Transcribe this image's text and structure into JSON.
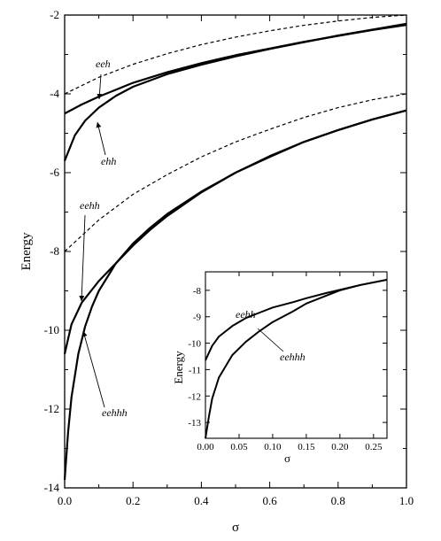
{
  "chart_data": [
    {
      "type": "line",
      "title": "",
      "xlabel": "σ",
      "ylabel": "Energy",
      "xlim": [
        0.0,
        1.0
      ],
      "ylim": [
        -14,
        -2
      ],
      "x_ticks": [
        "0.0",
        "0.2",
        "0.4",
        "0.6",
        "0.8",
        "1.0"
      ],
      "y_ticks": [
        "-14",
        "-12",
        "-10",
        "-8",
        "-6",
        "-4",
        "-2"
      ],
      "grid": false,
      "series": [
        {
          "style": "dashed",
          "x": [
            0.0,
            0.1,
            0.2,
            0.3,
            0.4,
            0.5,
            0.6,
            0.7,
            0.8,
            0.9,
            1.0
          ],
          "y": [
            -4.0,
            -3.58,
            -3.25,
            -2.98,
            -2.75,
            -2.56,
            -2.4,
            -2.26,
            -2.15,
            -2.06,
            -2.0
          ]
        },
        {
          "style": "solid",
          "x": [
            0.0,
            0.05,
            0.1,
            0.2,
            0.3,
            0.4,
            0.5,
            0.6,
            0.7,
            0.8,
            0.9,
            1.0
          ],
          "y": [
            -4.5,
            -4.27,
            -4.07,
            -3.72,
            -3.45,
            -3.22,
            -3.02,
            -2.85,
            -2.68,
            -2.53,
            -2.38,
            -2.25
          ]
        },
        {
          "style": "solid",
          "x": [
            0.0,
            0.03,
            0.06,
            0.1,
            0.15,
            0.2,
            0.3,
            0.4,
            0.5,
            0.6,
            0.7,
            0.8,
            0.9,
            1.0
          ],
          "y": [
            -5.7,
            -5.05,
            -4.68,
            -4.35,
            -4.05,
            -3.82,
            -3.5,
            -3.26,
            -3.05,
            -2.86,
            -2.69,
            -2.52,
            -2.37,
            -2.22
          ]
        },
        {
          "style": "dashed",
          "x": [
            0.0,
            0.1,
            0.2,
            0.3,
            0.4,
            0.5,
            0.6,
            0.7,
            0.8,
            0.9,
            1.0
          ],
          "y": [
            -8.0,
            -7.2,
            -6.55,
            -6.05,
            -5.6,
            -5.22,
            -4.9,
            -4.6,
            -4.35,
            -4.15,
            -4.0
          ]
        },
        {
          "style": "solid",
          "x": [
            0.0,
            0.02,
            0.05,
            0.1,
            0.15,
            0.2,
            0.25,
            0.3,
            0.4,
            0.5,
            0.6,
            0.7,
            0.8,
            0.9,
            1.0
          ],
          "y": [
            -10.6,
            -9.85,
            -9.3,
            -8.75,
            -8.3,
            -7.85,
            -7.45,
            -7.1,
            -6.5,
            -6.0,
            -5.6,
            -5.22,
            -4.92,
            -4.65,
            -4.42
          ]
        },
        {
          "style": "solid",
          "x": [
            0.0,
            0.01,
            0.02,
            0.04,
            0.06,
            0.08,
            0.1,
            0.15,
            0.2,
            0.25,
            0.3,
            0.4,
            0.5,
            0.6,
            0.7,
            0.8,
            0.9,
            1.0
          ],
          "y": [
            -13.8,
            -12.6,
            -11.7,
            -10.6,
            -9.9,
            -9.4,
            -9.0,
            -8.3,
            -7.8,
            -7.4,
            -7.05,
            -6.48,
            -6.0,
            -5.58,
            -5.22,
            -4.92,
            -4.65,
            -4.42
          ]
        }
      ],
      "annotations": [
        {
          "text": "eeh"
        },
        {
          "text": "ehh"
        },
        {
          "text": "eehh"
        },
        {
          "text": "eehhh"
        }
      ]
    },
    {
      "type": "line",
      "title": "",
      "xlabel": "σ",
      "ylabel": "Energy",
      "xlim": [
        0.0,
        0.27
      ],
      "ylim": [
        -13.6,
        -7.3
      ],
      "x_ticks": [
        "0.00",
        "0.05",
        "0.10",
        "0.15",
        "0.20",
        "0.25"
      ],
      "y_ticks": [
        "-8",
        "-9",
        "-10",
        "-11",
        "-12",
        "-13"
      ],
      "grid": false,
      "series": [
        {
          "style": "solid",
          "x": [
            0.0,
            0.01,
            0.02,
            0.04,
            0.06,
            0.08,
            0.1,
            0.13,
            0.15,
            0.18,
            0.2,
            0.23,
            0.27
          ],
          "y": [
            -10.65,
            -10.1,
            -9.75,
            -9.35,
            -9.05,
            -8.85,
            -8.65,
            -8.45,
            -8.3,
            -8.1,
            -7.98,
            -7.8,
            -7.6
          ]
        },
        {
          "style": "solid",
          "x": [
            0.0,
            0.005,
            0.01,
            0.02,
            0.04,
            0.06,
            0.08,
            0.1,
            0.13,
            0.15,
            0.18,
            0.2,
            0.23,
            0.27
          ],
          "y": [
            -13.6,
            -12.8,
            -12.1,
            -11.3,
            -10.45,
            -9.95,
            -9.55,
            -9.2,
            -8.8,
            -8.5,
            -8.2,
            -8.0,
            -7.8,
            -7.6
          ]
        }
      ],
      "annotations": [
        {
          "text": "eehh"
        },
        {
          "text": "eehhh"
        }
      ]
    }
  ]
}
